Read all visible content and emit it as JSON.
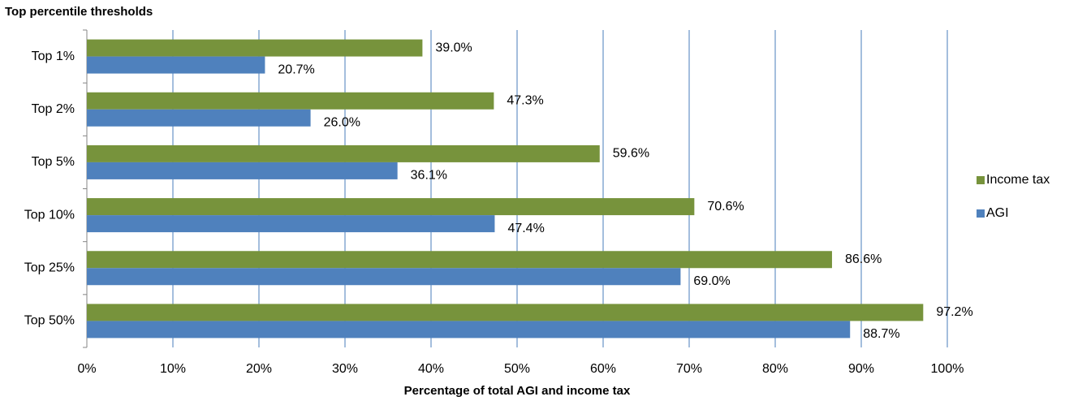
{
  "chart_data": {
    "type": "hbar",
    "title": "Top percentile thresholds",
    "x_label": "Percentage of total AGI and income tax",
    "categories": [
      "Top 1%",
      "Top 2%",
      "Top 5%",
      "Top 10%",
      "Top 25%",
      "Top 50%"
    ],
    "series": [
      {
        "name": "Income tax",
        "color": "#77933c",
        "values": [
          39.0,
          47.3,
          59.6,
          70.6,
          86.6,
          97.2
        ],
        "value_labels": [
          "39.0%",
          "47.3%",
          "59.6%",
          "70.6%",
          "86.6%",
          "97.2%"
        ]
      },
      {
        "name": "AGI",
        "color": "#4f81bd",
        "values": [
          20.7,
          26.0,
          36.1,
          47.4,
          69.0,
          88.7
        ],
        "value_labels": [
          "20.7%",
          "26.0%",
          "36.1%",
          "47.4%",
          "69.0%",
          "88.7%"
        ]
      }
    ],
    "xlim": [
      0,
      100
    ],
    "xticks": [
      {
        "value": 0,
        "label": "0%"
      },
      {
        "value": 10,
        "label": "10%"
      },
      {
        "value": 20,
        "label": "20%"
      },
      {
        "value": 30,
        "label": "30%"
      },
      {
        "value": 40,
        "label": "40%"
      },
      {
        "value": 50,
        "label": "50%"
      },
      {
        "value": 60,
        "label": "60%"
      },
      {
        "value": 70,
        "label": "70%"
      },
      {
        "value": 80,
        "label": "80%"
      },
      {
        "value": 90,
        "label": "90%"
      },
      {
        "value": 100,
        "label": "100%"
      }
    ],
    "grid": true,
    "legend": "right"
  }
}
